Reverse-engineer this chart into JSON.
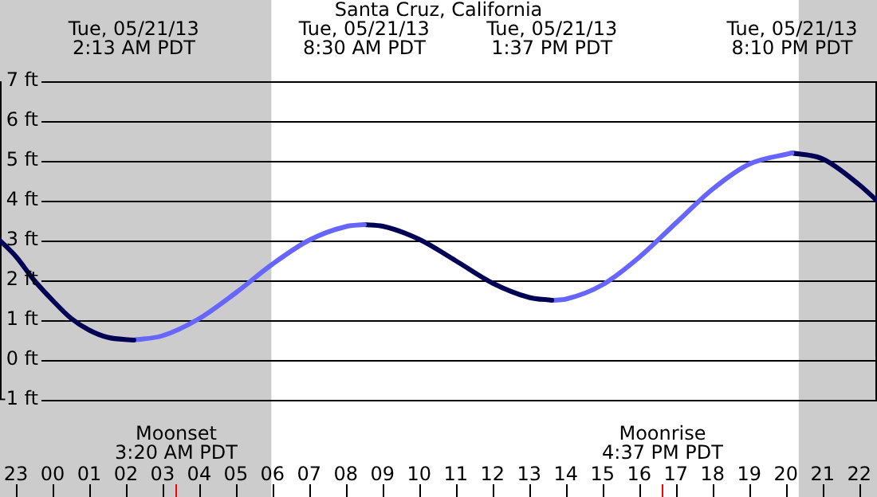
{
  "chart_data": {
    "type": "line",
    "title": "Santa Cruz, California",
    "series": [
      {
        "color": "#000055",
        "x": [
          "--05-20T22:34",
          "--05-20T23:00",
          "--05-20T23:30",
          "--05-21T00:00",
          "--05-21T00:30",
          "--05-21T01:00",
          "--05-21T01:30",
          "--05-21T02:13"
        ],
        "values": [
          3.0,
          2.6,
          2.0,
          1.5,
          1.05,
          0.75,
          0.57,
          0.5
        ]
      },
      {
        "color": "#6666ff",
        "x": [
          "--05-21T02:13",
          "--05-21T03:00",
          "--05-21T04:00",
          "--05-21T05:00",
          "--05-21T06:00",
          "--05-21T07:00",
          "--05-21T08:00",
          "--05-21T08:30"
        ],
        "values": [
          0.5,
          0.61,
          1.04,
          1.69,
          2.41,
          3.01,
          3.35,
          3.4
        ]
      },
      {
        "color": "#000055",
        "x": [
          "--05-21T08:30",
          "--05-21T09:00",
          "--05-21T10:00",
          "--05-21T11:00",
          "--05-21T12:00",
          "--05-21T13:00",
          "--05-21T13:37"
        ],
        "values": [
          3.4,
          3.36,
          3.03,
          2.49,
          1.93,
          1.57,
          1.5
        ]
      },
      {
        "color": "#6666ff",
        "x": [
          "--05-21T13:37",
          "--05-21T14:00",
          "--05-21T15:00",
          "--05-21T16:00",
          "--05-21T17:00",
          "--05-21T18:00",
          "--05-21T19:00",
          "--05-21T20:10"
        ],
        "values": [
          1.5,
          1.53,
          1.89,
          2.58,
          3.44,
          4.29,
          4.92,
          5.2
        ]
      },
      {
        "color": "#000055",
        "x": [
          "--05-21T20:10",
          "--05-21T21:00",
          "--05-21T22:00",
          "--05-21T22:29"
        ],
        "values": [
          5.2,
          5.05,
          4.4,
          4.0
        ]
      }
    ],
    "xlim": [
      "--05-20T22:34",
      "--05-21T22:29"
    ],
    "xticks": [
      {
        "value": "--05-20T23:00",
        "label": "23"
      },
      {
        "value": "--05-21T00:00",
        "label": "00"
      },
      {
        "value": "--05-21T01:00",
        "label": "01"
      },
      {
        "value": "--05-21T02:00",
        "label": "02"
      },
      {
        "value": "--05-21T03:00",
        "label": "03"
      },
      {
        "value": "--05-21T04:00",
        "label": "04"
      },
      {
        "value": "--05-21T05:00",
        "label": "05"
      },
      {
        "value": "--05-21T06:00",
        "label": "06"
      },
      {
        "value": "--05-21T07:00",
        "label": "07"
      },
      {
        "value": "--05-21T08:00",
        "label": "08"
      },
      {
        "value": "--05-21T09:00",
        "label": "09"
      },
      {
        "value": "--05-21T10:00",
        "label": "10"
      },
      {
        "value": "--05-21T11:00",
        "label": "11"
      },
      {
        "value": "--05-21T12:00",
        "label": "12"
      },
      {
        "value": "--05-21T13:00",
        "label": "13"
      },
      {
        "value": "--05-21T14:00",
        "label": "14"
      },
      {
        "value": "--05-21T15:00",
        "label": "15"
      },
      {
        "value": "--05-21T16:00",
        "label": "16"
      },
      {
        "value": "--05-21T17:00",
        "label": "17"
      },
      {
        "value": "--05-21T18:00",
        "label": "18"
      },
      {
        "value": "--05-21T19:00",
        "label": "19"
      },
      {
        "value": "--05-21T20:00",
        "label": "20"
      },
      {
        "value": "--05-21T21:00",
        "label": "21"
      },
      {
        "value": "--05-21T22:00",
        "label": "22"
      }
    ],
    "ylim": [
      -1,
      7
    ],
    "yticks": [
      {
        "value": -1,
        "label": "-1 ft"
      },
      {
        "value": 0,
        "label": "0 ft"
      },
      {
        "value": 1,
        "label": "1 ft"
      },
      {
        "value": 2,
        "label": "2 ft"
      },
      {
        "value": 3,
        "label": "3 ft"
      },
      {
        "value": 4,
        "label": "4 ft"
      },
      {
        "value": 5,
        "label": "5 ft"
      },
      {
        "value": 6,
        "label": "6 ft"
      },
      {
        "value": 7,
        "label": "7 ft"
      }
    ],
    "grid": "y",
    "legend": false,
    "marker": "none",
    "line_style": "solid",
    "bands": [
      {
        "axis": "x",
        "from": "--05-20T22:34",
        "to": "--05-21T05:58",
        "color": "#cccccc"
      },
      {
        "axis": "x",
        "from": "--05-21T20:21",
        "to": "--05-21T22:29",
        "color": "#cccccc"
      }
    ],
    "ref_lines": [
      {
        "axis": "x",
        "value": "--05-21T03:20",
        "label": "Moonset\n3:20 AM PDT",
        "color": "#ff0000"
      },
      {
        "axis": "x",
        "value": "--05-21T16:37",
        "label": "Moonrise\n4:37 PM PDT",
        "color": "#ff0000"
      }
    ],
    "annotations": [
      "Tue, 05/21/13\n2:13 AM PDT",
      "Tue, 05/21/13\n8:30 AM PDT",
      "Tue, 05/21/13\n1:37 PM PDT",
      "Tue, 05/21/13\n8:10 PM PDT"
    ]
  }
}
